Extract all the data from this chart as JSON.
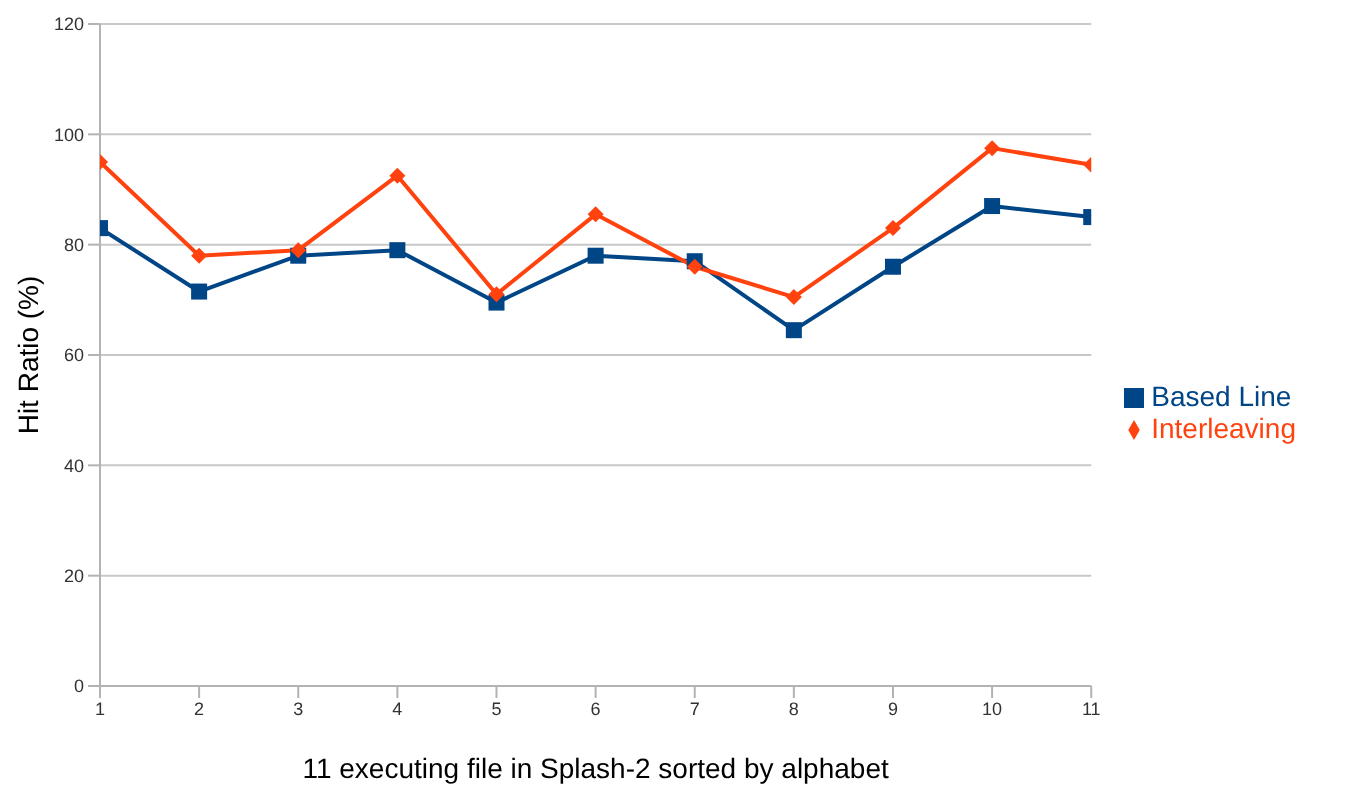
{
  "chart_data": {
    "type": "line",
    "xlabel": "11 executing file in Splash-2 sorted by alphabet",
    "ylabel": "Hit Ratio (%)",
    "x": [
      1,
      2,
      3,
      4,
      5,
      6,
      7,
      8,
      9,
      10,
      11
    ],
    "xlim": [
      1,
      11
    ],
    "xticks": [
      1,
      2,
      3,
      4,
      5,
      6,
      7,
      8,
      9,
      10,
      11
    ],
    "ylim": [
      0,
      120
    ],
    "yticks": [
      0,
      20,
      40,
      60,
      80,
      100,
      120
    ],
    "grid": "y",
    "legend": "right",
    "series": [
      {
        "name": "Based Line",
        "color": "#004586",
        "marker": "square",
        "values": [
          83,
          71.5,
          78,
          79,
          69.5,
          78,
          77,
          64.5,
          76,
          87,
          85
        ]
      },
      {
        "name": "Interleaving",
        "color": "#ff420e",
        "marker": "diamond",
        "values": [
          95,
          78,
          79,
          92.5,
          71,
          85.5,
          76,
          70.5,
          83,
          97.5,
          94.5
        ]
      }
    ]
  }
}
